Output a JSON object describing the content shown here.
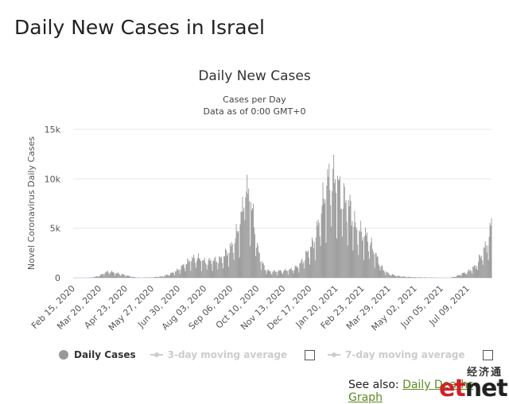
{
  "page_title": "Daily New Cases in Israel",
  "chart_data": {
    "type": "bar",
    "title": "Daily New Cases",
    "subtitle": "Cases per Day",
    "subtitle2": "Data as of 0:00 GMT+0",
    "ylabel": "Novel Coronavirus Daily Cases",
    "xlabel": "",
    "ylim": [
      0,
      15000
    ],
    "yticks": [
      0,
      5000,
      10000,
      15000
    ],
    "ytick_labels": [
      "0",
      "5k",
      "10k",
      "15k"
    ],
    "x_start": "2020-02-15",
    "x_end": "2021-08-09",
    "xtick_labels": [
      "Feb 15, 2020",
      "Mar 20, 2020",
      "Apr 23, 2020",
      "May 27, 2020",
      "Jun 30, 2020",
      "Aug 03, 2020",
      "Sep 06, 2020",
      "Oct 10, 2020",
      "Nov 13, 2020",
      "Dec 17, 2020",
      "Jan 20, 2021",
      "Feb 23, 2021",
      "Mar 29, 2021",
      "May 02, 2021",
      "Jun 05, 2021",
      "Jul 09, 2021"
    ],
    "series_color": "#999999",
    "series": [
      {
        "name": "Daily Cases",
        "points": [
          [
            "2020-02-15",
            0
          ],
          [
            "2020-03-10",
            30
          ],
          [
            "2020-03-20",
            200
          ],
          [
            "2020-03-27",
            500
          ],
          [
            "2020-04-02",
            650
          ],
          [
            "2020-04-08",
            500
          ],
          [
            "2020-04-15",
            400
          ],
          [
            "2020-04-23",
            250
          ],
          [
            "2020-05-01",
            100
          ],
          [
            "2020-05-10",
            20
          ],
          [
            "2020-05-27",
            40
          ],
          [
            "2020-06-10",
            150
          ],
          [
            "2020-06-20",
            400
          ],
          [
            "2020-06-30",
            800
          ],
          [
            "2020-07-08",
            1300
          ],
          [
            "2020-07-16",
            1800
          ],
          [
            "2020-07-24",
            2000
          ],
          [
            "2020-08-03",
            1600
          ],
          [
            "2020-08-15",
            1700
          ],
          [
            "2020-08-25",
            1900
          ],
          [
            "2020-09-02",
            2600
          ],
          [
            "2020-09-08",
            3200
          ],
          [
            "2020-09-13",
            4200
          ],
          [
            "2020-09-18",
            5500
          ],
          [
            "2020-09-22",
            7000
          ],
          [
            "2020-09-24",
            11200
          ],
          [
            "2020-09-26",
            8000
          ],
          [
            "2020-09-30",
            8800
          ],
          [
            "2020-10-03",
            6500
          ],
          [
            "2020-10-06",
            5800
          ],
          [
            "2020-10-10",
            3000
          ],
          [
            "2020-10-15",
            1800
          ],
          [
            "2020-10-20",
            900
          ],
          [
            "2020-10-27",
            600
          ],
          [
            "2020-11-05",
            650
          ],
          [
            "2020-11-13",
            700
          ],
          [
            "2020-11-22",
            800
          ],
          [
            "2020-12-01",
            1100
          ],
          [
            "2020-12-08",
            1700
          ],
          [
            "2020-12-15",
            2600
          ],
          [
            "2020-12-22",
            3500
          ],
          [
            "2020-12-29",
            5500
          ],
          [
            "2021-01-05",
            8200
          ],
          [
            "2021-01-10",
            9600
          ],
          [
            "2021-01-17",
            9800
          ],
          [
            "2021-01-20",
            10000
          ],
          [
            "2021-01-25",
            8500
          ],
          [
            "2021-02-02",
            7500
          ],
          [
            "2021-02-08",
            6800
          ],
          [
            "2021-02-15",
            4800
          ],
          [
            "2021-02-23",
            4400
          ],
          [
            "2021-03-01",
            4000
          ],
          [
            "2021-03-08",
            3000
          ],
          [
            "2021-03-15",
            1800
          ],
          [
            "2021-03-22",
            800
          ],
          [
            "2021-03-29",
            400
          ],
          [
            "2021-04-08",
            200
          ],
          [
            "2021-04-20",
            100
          ],
          [
            "2021-05-02",
            60
          ],
          [
            "2021-05-20",
            30
          ],
          [
            "2021-06-05",
            15
          ],
          [
            "2021-06-15",
            10
          ],
          [
            "2021-06-22",
            100
          ],
          [
            "2021-06-29",
            300
          ],
          [
            "2021-07-05",
            500
          ],
          [
            "2021-07-09",
            600
          ],
          [
            "2021-07-15",
            900
          ],
          [
            "2021-07-20",
            1200
          ],
          [
            "2021-07-25",
            2000
          ],
          [
            "2021-07-30",
            2700
          ],
          [
            "2021-08-04",
            3500
          ],
          [
            "2021-08-07",
            4300
          ],
          [
            "2021-08-09",
            5800
          ]
        ]
      }
    ],
    "legend_position": "bottom-left",
    "grid": true
  },
  "legend": {
    "daily_cases": "Daily Cases",
    "ma3": "3-day moving average",
    "ma7": "7-day moving average"
  },
  "see_also": {
    "prefix": "See also: ",
    "link_text": "Daily Deaths Graph"
  },
  "watermark": {
    "cn": "经济通",
    "latin_red": "et",
    "latin_dark": "net"
  }
}
